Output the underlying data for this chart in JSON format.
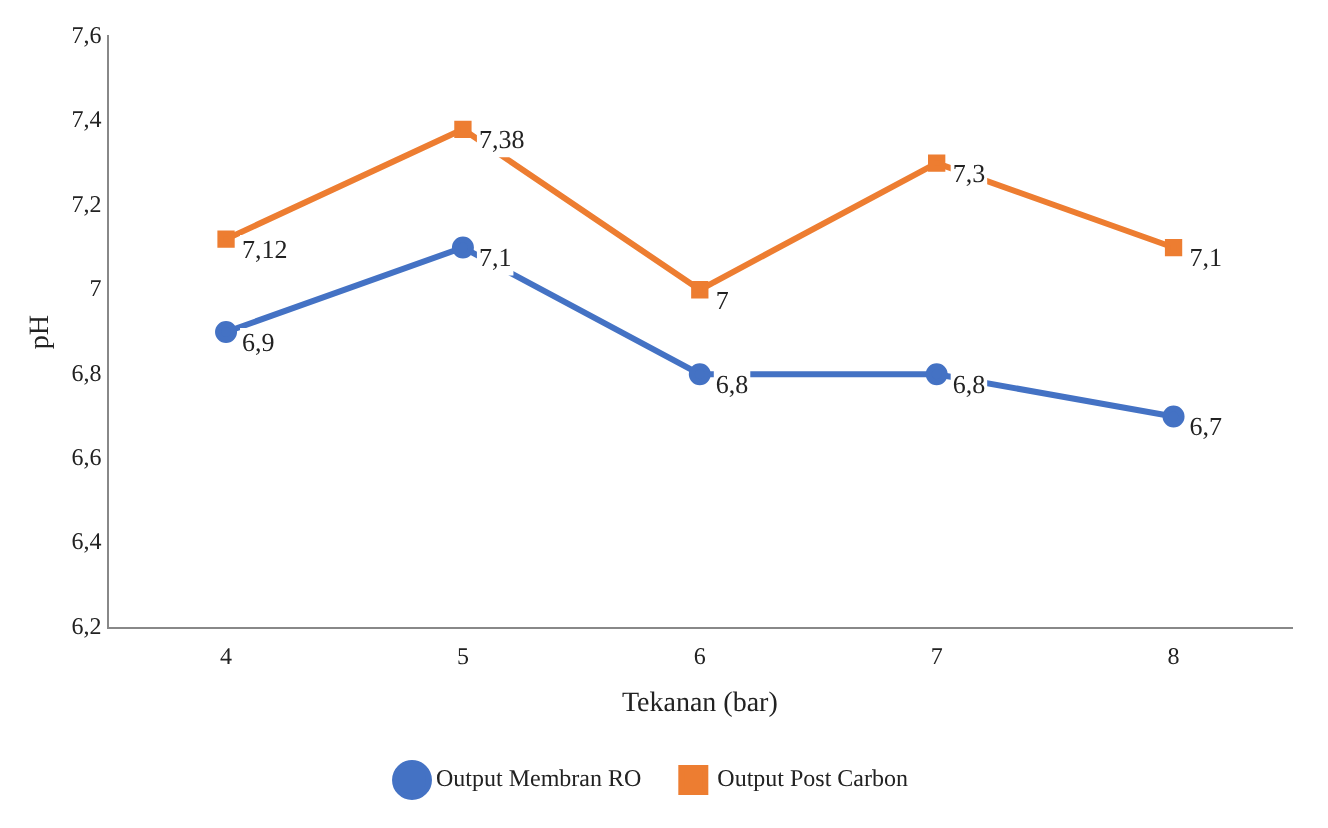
{
  "chart_data": {
    "type": "line",
    "xlabel": "Tekanan (bar)",
    "ylabel": "pH",
    "categories": [
      "4",
      "5",
      "6",
      "7",
      "8"
    ],
    "series": [
      {
        "name": "Output Membran RO",
        "color": "#4472c4",
        "marker": "circle",
        "values": [
          6.9,
          7.1,
          6.8,
          6.8,
          6.7
        ],
        "value_labels": [
          "6,9",
          "7,1",
          "6,8",
          "6,8",
          "6,7"
        ]
      },
      {
        "name": "Output Post Carbon",
        "color": "#ed7d31",
        "marker": "square",
        "values": [
          7.12,
          7.38,
          7,
          7.3,
          7.1
        ],
        "value_labels": [
          "7,12",
          "7,38",
          "7",
          "7,3",
          "7,1"
        ]
      }
    ],
    "ylim": [
      6.2,
      7.6
    ],
    "yticks": [
      {
        "value": 6.2,
        "label": "6,2"
      },
      {
        "value": 6.4,
        "label": "6,4"
      },
      {
        "value": 6.6,
        "label": "6,6"
      },
      {
        "value": 6.8,
        "label": "6,8"
      },
      7,
      {
        "value": 7.2,
        "label": "7,2"
      },
      {
        "value": 7.4,
        "label": "7,4"
      },
      {
        "value": 7.6,
        "label": "7,6"
      }
    ],
    "grid": false,
    "legend": "bottom",
    "line_style": "solid"
  }
}
